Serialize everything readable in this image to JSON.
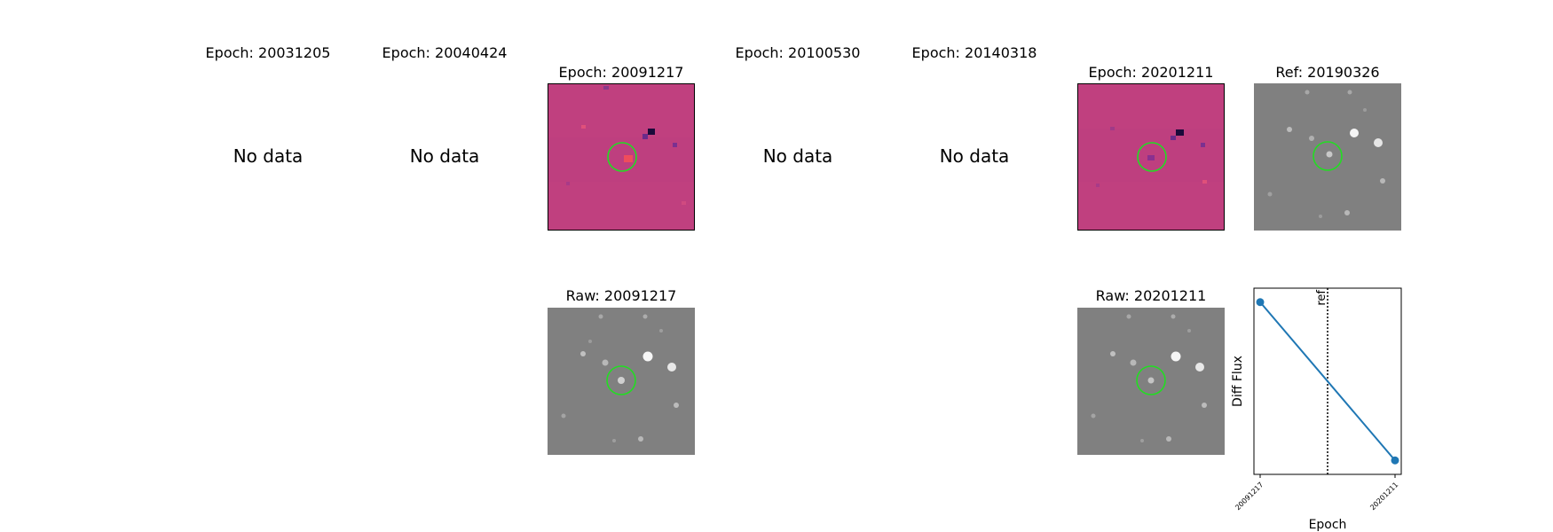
{
  "epochs": [
    {
      "title": "Epoch: 20031205",
      "no_data": "No data"
    },
    {
      "title": "Epoch: 20040424",
      "no_data": "No data"
    },
    {
      "title": "Epoch: 20091217"
    },
    {
      "title": "Epoch: 20100530",
      "no_data": "No data"
    },
    {
      "title": "Epoch: 20140318",
      "no_data": "No data"
    },
    {
      "title": "Epoch: 20201211"
    }
  ],
  "reference": {
    "title": "Ref: 20190326"
  },
  "raw": [
    {
      "title": "Raw: 20091217"
    },
    {
      "title": "Raw: 20201211"
    }
  ],
  "colors": {
    "diff_background": "#c0407f",
    "marker_circle": "#22dd22",
    "raw_background": "#808080",
    "series": "#1f77b4"
  },
  "chart_data": {
    "type": "line",
    "title": "",
    "xlabel": "Epoch",
    "ylabel": "Diff Flux",
    "x": [
      "20091217",
      "20201211"
    ],
    "series": [
      {
        "values": [
          0.85,
          -0.85
        ]
      }
    ],
    "reference_line": {
      "position": 0.5,
      "label": "ref",
      "style": "dotted"
    },
    "y_ticks_shown": false,
    "grid": false
  }
}
